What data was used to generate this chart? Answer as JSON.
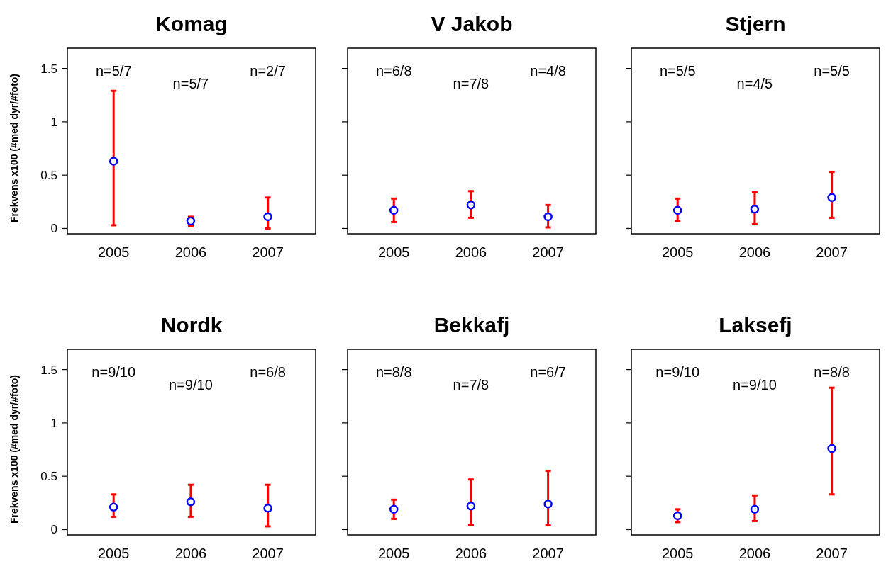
{
  "chart_data": [
    {
      "type": "scatter",
      "title": "Komag",
      "ylabel": "Frekvens x100 (#med dyr/#foto)",
      "x": [
        2005,
        2006,
        2007
      ],
      "xlim": [
        2004.4,
        2007.62
      ],
      "xticks": [
        2005,
        2006,
        2007
      ],
      "ylim": [
        -0.05,
        1.69
      ],
      "yticks": [
        0,
        0.5,
        1,
        1.5
      ],
      "marker": "circle",
      "grid": false,
      "series": [
        {
          "color": "#0000ff",
          "values": [
            0.63,
            0.07,
            0.11
          ],
          "errors": [
            [
              0.03,
              1.29
            ],
            [
              0.02,
              0.11
            ],
            [
              0.0,
              0.29
            ]
          ]
        }
      ],
      "annotations": [
        "n=5/7",
        "n=5/7",
        "n=2/7"
      ]
    },
    {
      "type": "scatter",
      "title": "V Jakob",
      "x": [
        2005,
        2006,
        2007
      ],
      "xlim": [
        2004.4,
        2007.62
      ],
      "xticks": [
        2005,
        2006,
        2007
      ],
      "ylim": [
        -0.05,
        1.69
      ],
      "yticks": [
        0,
        0.5,
        1,
        1.5
      ],
      "tick_labels": "x",
      "marker": "circle",
      "grid": false,
      "series": [
        {
          "color": "#0000ff",
          "values": [
            0.17,
            0.22,
            0.11
          ],
          "errors": [
            [
              0.06,
              0.28
            ],
            [
              0.1,
              0.35
            ],
            [
              0.01,
              0.22
            ]
          ]
        }
      ],
      "annotations": [
        "n=6/8",
        "n=7/8",
        "n=4/8"
      ]
    },
    {
      "type": "scatter",
      "title": "Stjern",
      "x": [
        2005,
        2006,
        2007
      ],
      "xlim": [
        2004.4,
        2007.62
      ],
      "xticks": [
        2005,
        2006,
        2007
      ],
      "ylim": [
        -0.05,
        1.69
      ],
      "yticks": [
        0,
        0.5,
        1,
        1.5
      ],
      "tick_labels": "x",
      "marker": "circle",
      "grid": false,
      "series": [
        {
          "color": "#0000ff",
          "values": [
            0.17,
            0.18,
            0.29
          ],
          "errors": [
            [
              0.07,
              0.28
            ],
            [
              0.04,
              0.34
            ],
            [
              0.1,
              0.53
            ]
          ]
        }
      ],
      "annotations": [
        "n=5/5",
        "n=4/5",
        "n=5/5"
      ]
    },
    {
      "type": "scatter",
      "title": "Nordk",
      "ylabel": "Frekvens x100 (#med dyr/#foto)",
      "x": [
        2005,
        2006,
        2007
      ],
      "xlim": [
        2004.4,
        2007.62
      ],
      "xticks": [
        2005,
        2006,
        2007
      ],
      "ylim": [
        -0.05,
        1.69
      ],
      "yticks": [
        0,
        0.5,
        1,
        1.5
      ],
      "marker": "circle",
      "grid": false,
      "series": [
        {
          "color": "#0000ff",
          "values": [
            0.21,
            0.26,
            0.2
          ],
          "errors": [
            [
              0.12,
              0.33
            ],
            [
              0.12,
              0.42
            ],
            [
              0.03,
              0.42
            ]
          ]
        }
      ],
      "annotations": [
        "n=9/10",
        "n=9/10",
        "n=6/8"
      ]
    },
    {
      "type": "scatter",
      "title": "Bekkafj",
      "x": [
        2005,
        2006,
        2007
      ],
      "xlim": [
        2004.4,
        2007.62
      ],
      "xticks": [
        2005,
        2006,
        2007
      ],
      "ylim": [
        -0.05,
        1.69
      ],
      "yticks": [
        0,
        0.5,
        1,
        1.5
      ],
      "tick_labels": "x",
      "marker": "circle",
      "grid": false,
      "series": [
        {
          "color": "#0000ff",
          "values": [
            0.19,
            0.22,
            0.24
          ],
          "errors": [
            [
              0.1,
              0.28
            ],
            [
              0.04,
              0.47
            ],
            [
              0.04,
              0.55
            ]
          ]
        }
      ],
      "annotations": [
        "n=8/8",
        "n=7/8",
        "n=6/7"
      ]
    },
    {
      "type": "scatter",
      "title": "Laksefj",
      "x": [
        2005,
        2006,
        2007
      ],
      "xlim": [
        2004.4,
        2007.62
      ],
      "xticks": [
        2005,
        2006,
        2007
      ],
      "ylim": [
        -0.05,
        1.69
      ],
      "yticks": [
        0,
        0.5,
        1,
        1.5
      ],
      "tick_labels": "x",
      "marker": "circle",
      "grid": false,
      "series": [
        {
          "color": "#0000ff",
          "values": [
            0.13,
            0.19,
            0.76
          ],
          "errors": [
            [
              0.07,
              0.19
            ],
            [
              0.08,
              0.32
            ],
            [
              0.33,
              1.33
            ]
          ]
        }
      ],
      "annotations": [
        "n=9/10",
        "n=9/10",
        "n=8/8"
      ]
    }
  ]
}
